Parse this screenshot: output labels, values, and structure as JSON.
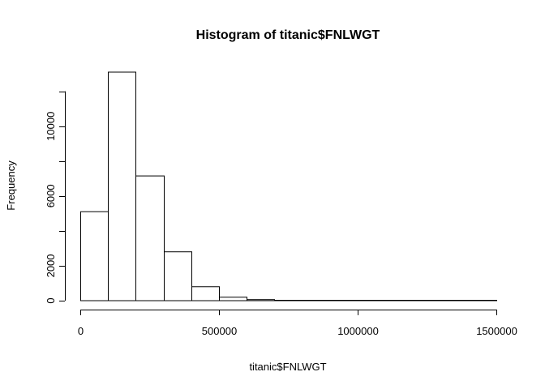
{
  "chart_data": {
    "type": "bar",
    "title": "Histogram of titanic$FNLWGT",
    "xlabel": "titanic$FNLWGT",
    "ylabel": "Frequency",
    "bins": [
      {
        "x0": 0,
        "x1": 100000,
        "count": 5100
      },
      {
        "x0": 100000,
        "x1": 200000,
        "count": 13100
      },
      {
        "x0": 200000,
        "x1": 300000,
        "count": 7150
      },
      {
        "x0": 300000,
        "x1": 400000,
        "count": 2800
      },
      {
        "x0": 400000,
        "x1": 500000,
        "count": 800
      },
      {
        "x0": 500000,
        "x1": 600000,
        "count": 200
      },
      {
        "x0": 600000,
        "x1": 700000,
        "count": 60
      },
      {
        "x0": 700000,
        "x1": 800000,
        "count": 15
      },
      {
        "x0": 800000,
        "x1": 900000,
        "count": 8
      },
      {
        "x0": 900000,
        "x1": 1000000,
        "count": 4
      },
      {
        "x0": 1000000,
        "x1": 1100000,
        "count": 2
      },
      {
        "x0": 1100000,
        "x1": 1200000,
        "count": 1
      },
      {
        "x0": 1200000,
        "x1": 1300000,
        "count": 1
      },
      {
        "x0": 1300000,
        "x1": 1400000,
        "count": 1
      },
      {
        "x0": 1400000,
        "x1": 1500000,
        "count": 1
      }
    ],
    "x_ticks": [
      0,
      500000,
      1000000,
      1500000
    ],
    "x_tick_labels": [
      "0",
      "500000",
      "1000000",
      "1500000"
    ],
    "y_ticks": [
      0,
      2000,
      6000,
      10000
    ],
    "y_tick_labels": [
      "0",
      "2000",
      "6000",
      "10000"
    ],
    "y_axis_max_tick": 12000,
    "xlim": [
      0,
      1500000
    ],
    "ylim": [
      0,
      13100
    ],
    "grid": false,
    "legend": "none",
    "colors": {
      "bar_fill": "#ffffff",
      "bar_stroke": "#000000",
      "background": "#ffffff"
    }
  }
}
